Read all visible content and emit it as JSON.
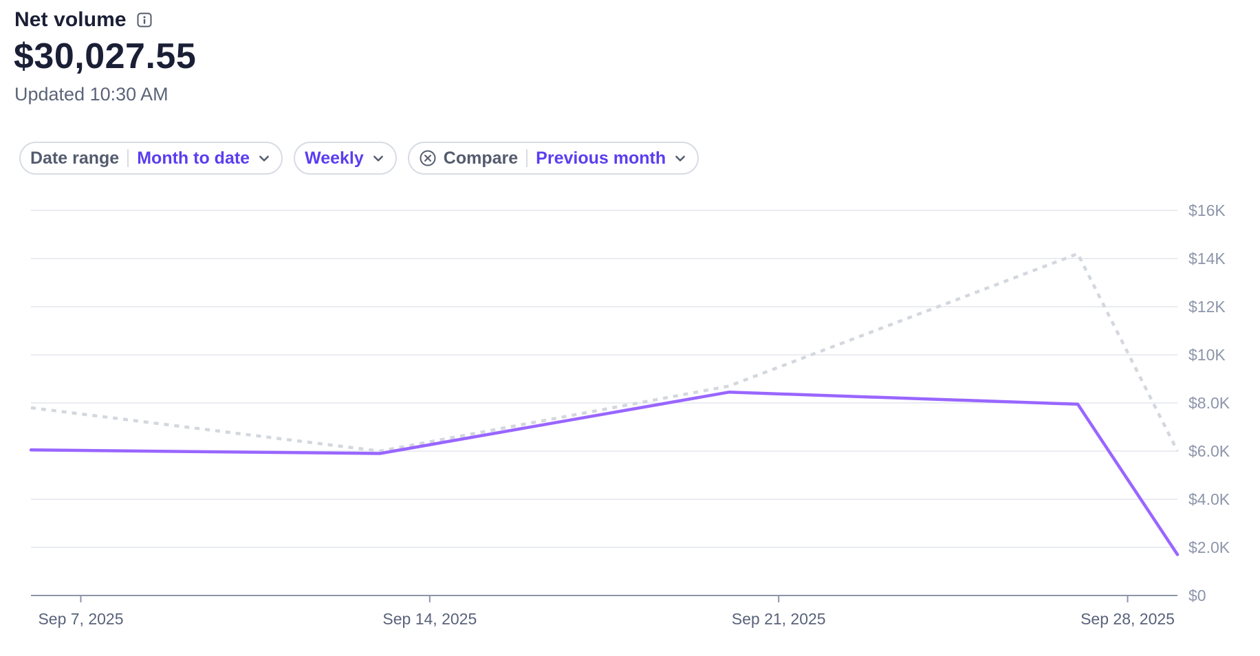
{
  "header": {
    "title": "Net volume",
    "amount": "$30,027.55",
    "updated": "Updated 10:30 AM"
  },
  "filters": {
    "date_range_label": "Date range",
    "date_range_value": "Month to date",
    "interval_value": "Weekly",
    "compare_label": "Compare",
    "compare_value": "Previous month"
  },
  "icons": {
    "info": "info-icon",
    "chevron": "chevron-down-icon",
    "clear": "close-circle-icon"
  },
  "colors": {
    "primary_series": "#9966ff",
    "comparison_series": "#d3d7de",
    "accent": "#5b3df0",
    "grid": "#e3e6ee"
  },
  "chart_data": {
    "type": "line",
    "ylim": [
      0,
      16000
    ],
    "y_ticks": [
      0,
      2000,
      4000,
      6000,
      8000,
      10000,
      12000,
      14000,
      16000
    ],
    "y_tick_labels": [
      "$0",
      "$2.0K",
      "$4.0K",
      "$6.0K",
      "$8.0K",
      "$10K",
      "$12K",
      "$14K",
      "$16K"
    ],
    "x_tick_labels": [
      "Sep 7, 2025",
      "Sep 14, 2025",
      "Sep 21, 2025",
      "Sep 28, 2025"
    ],
    "x_tick_positions": [
      1,
      8,
      15,
      22
    ],
    "xlim": [
      0,
      23
    ],
    "grid": true,
    "series": [
      {
        "style": "solid",
        "x": [
          0,
          7,
          14,
          21,
          23
        ],
        "values": [
          6050,
          5900,
          8450,
          7950,
          1700
        ]
      },
      {
        "style": "dotted",
        "x": [
          0,
          7,
          14,
          21,
          23
        ],
        "values": [
          7800,
          6000,
          8700,
          14200,
          6000
        ]
      }
    ]
  }
}
